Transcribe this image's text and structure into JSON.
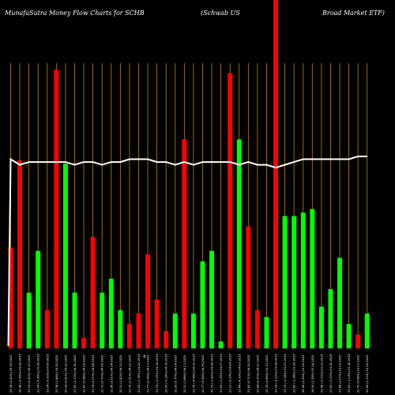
{
  "header": {
    "left": "MunafaSutra  Money Flow  Charts for SCHB",
    "middle": "(Schwab US",
    "right": "Broad Market ETF)"
  },
  "colors": {
    "background": "#000000",
    "grid": "#b8860b",
    "up": "#00ff00",
    "down": "#ff0000",
    "line": "#ffffff"
  },
  "chart_data": {
    "type": "bar",
    "grid": true,
    "ylim": [
      0,
      100
    ],
    "overlay_ylim": [
      0,
      100
    ],
    "center_mark": "0",
    "categories": [
      "Fri 09 May 2025",
      "Thu 08 May 2025",
      "Wed 07 May 2025",
      "Tue 06 May 2025",
      "Mon 05 May 2025",
      "Fri 02 May 2025",
      "Thu 01 May 2025",
      "Wed 30 Apr 2025",
      "Tue 29 Apr 2025",
      "Mon 28 Apr 2025",
      "Fri 25 Apr 2025",
      "Thu 24 Apr 2025",
      "Wed 23 Apr 2025",
      "Tue 22 Apr 2025",
      "Mon 21 Apr 2025",
      "Thu 17 Apr 2025",
      "Wed 16 Apr 2025",
      "Tue 15 Apr 2025",
      "Mon 14 Apr 2025",
      "Fri 11 Apr 2025",
      "Thu 10 Apr 2025",
      "Wed 09 Apr 2025",
      "Tue 08 Apr 2025",
      "Mon 07 Apr 2025",
      "Fri 04 Apr 2025",
      "Thu 03 Apr 2025",
      "Wed 02 Apr 2025",
      "Tue 01 Apr 2025",
      "Mon 31 Mar 2025",
      "Fri 28 Mar 2025",
      "Thu 27 Mar 2025",
      "Wed 26 Mar 2025",
      "Tue 25 Mar 2025",
      "Mon 24 Mar 2025",
      "Fri 21 Mar 2025",
      "Thu 20 Mar 2025",
      "Wed 19 Mar 2025",
      "Tue 18 Mar 2025",
      "Mon 17 Mar 2025",
      "Fri 14 Mar 2025"
    ],
    "tick_labels": [
      "23.08 (0.42%) 05-09-2025",
      "22.98 (-0.69%) 05-08-2025",
      "23.14 (0.42%) 05-07-2025",
      "23.04 (-0.85%) 05-06-2025",
      "23.24 (-0.61%) 05-05-2025",
      "23.38 (1.48%) 05-02-2025",
      "23.04 (0.61%) 05-01-2025",
      "22.90 (0.13%) 04-30-2025",
      "22.87 (0.58%) 04-29-2025",
      "22.74 (0.07%) 04-28-2025",
      "22.72 (0.70%) 04-25-2025",
      "22.56 (2.01%) 04-24-2025",
      "22.12 (1.52%) 04-23-2025",
      "21.79 (2.51%) 04-22-2025",
      "21.26 (-2.36%) 04-21-2025",
      "21.77 (0.14%) 04-17-2025",
      "21.74 (-2.29%) 04-16-2025",
      "22.25 (-0.18%) 04-15-2025",
      "22.29 (0.77%) 04-14-2025",
      "22.12 (1.68%) 04-11-2025",
      "21.75 (-4.49%) 04-10-2025",
      "22.77 (9.54%) 04-09-2025",
      "20.79 (-1.42%) 04-08-2025",
      "21.09 (-0.05%) 04-07-2025",
      "21.10 (-5.97%) 04-04-2025",
      "22.44 (-4.93%) 04-03-2025",
      "23.60 (0.71%) 04-02-2025",
      "23.44 (0.37%) 04-01-2025",
      "23.35 (0.48%) 03-31-2025",
      "23.24 (-2.02%) 03-28-2025",
      "23.72 (-0.34%) 03-27-2025",
      "23.80 (-1.08%) 03-26-2025",
      "24.06 (0.25%) 03-25-2025",
      "24.00 (1.78%) 03-24-2025",
      "23.58 (-0.21%) 03-21-2025",
      "23.63 (-0.21%) 03-20-2025",
      "23.68 (1.07%) 03-19-2025",
      "23.43 (-1.14%) 03-18-2025",
      "23.70 (0.64%) 03-17-2025",
      "23.55 (2.13%) 03-14-2025"
    ],
    "series": [
      {
        "values": [
          29,
          54,
          16,
          28,
          11,
          80,
          53,
          16,
          3,
          32,
          16,
          20,
          11,
          7,
          10,
          27,
          14,
          5,
          10,
          60,
          10,
          25,
          28,
          2,
          79,
          60,
          35,
          11,
          9,
          100,
          38,
          38,
          39,
          40,
          12,
          17,
          26,
          7,
          4,
          10
        ],
        "direction": [
          "down",
          "down",
          "up",
          "up",
          "down",
          "down",
          "up",
          "up",
          "down",
          "down",
          "up",
          "up",
          "up",
          "down",
          "down",
          "down",
          "down",
          "down",
          "up",
          "down",
          "up",
          "up",
          "up",
          "up",
          "down",
          "up",
          "down",
          "down",
          "up",
          "down",
          "up",
          "up",
          "up",
          "up",
          "up",
          "up",
          "up",
          "up",
          "down",
          "up"
        ]
      },
      {
        "values": [
          68,
          66,
          67,
          67,
          67,
          67,
          67,
          66,
          67,
          67,
          66,
          67,
          67,
          68,
          68,
          68,
          67,
          67,
          66,
          67,
          66,
          67,
          67,
          67,
          67,
          66,
          67,
          66,
          66,
          65,
          66,
          67,
          68,
          68,
          68,
          68,
          68,
          68,
          69,
          69
        ]
      }
    ]
  }
}
